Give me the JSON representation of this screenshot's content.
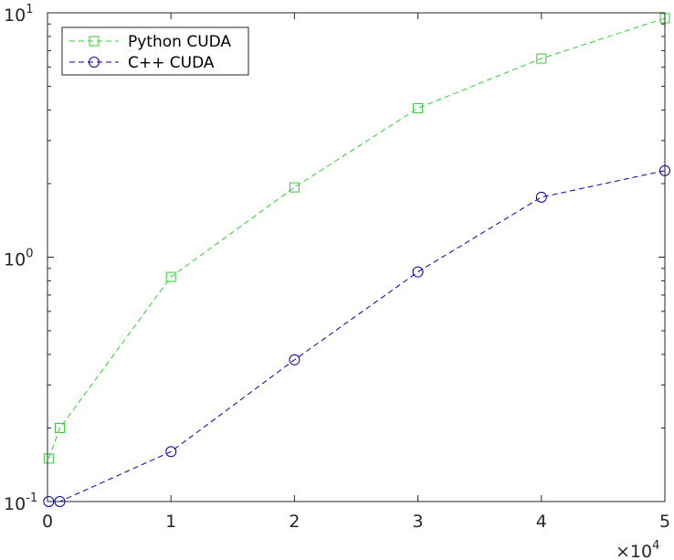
{
  "chart_data": {
    "type": "line",
    "title": "",
    "xlabel": "",
    "ylabel": "",
    "x_multiplier_label": "×10",
    "x_multiplier_exponent": "4",
    "xlim": [
      0,
      50000
    ],
    "ylim": [
      0.1,
      10
    ],
    "y_scale": "log",
    "grid": false,
    "legend_position": "top-left",
    "x_ticks": [
      0,
      10000,
      20000,
      30000,
      40000,
      50000
    ],
    "x_tick_labels": [
      "0",
      "1",
      "2",
      "3",
      "4",
      "5"
    ],
    "y_ticks": [
      0.1,
      1,
      10
    ],
    "y_tick_base": "10",
    "y_tick_exponents": [
      "-1",
      "0",
      "1"
    ],
    "series": [
      {
        "name": "Python CUDA",
        "color": "#33cc33",
        "marker": "square",
        "line_style": "dashed",
        "x": [
          100,
          1000,
          10000,
          20000,
          30000,
          40000,
          50000
        ],
        "y": [
          0.15,
          0.2,
          0.83,
          1.93,
          4.07,
          6.5,
          9.5
        ]
      },
      {
        "name": "C++ CUDA",
        "color": "#0000aa",
        "marker": "circle",
        "line_style": "dashed",
        "x": [
          100,
          1000,
          10000,
          20000,
          30000,
          40000,
          50000
        ],
        "y": [
          0.1,
          0.1,
          0.16,
          0.38,
          0.87,
          1.76,
          2.26
        ]
      }
    ]
  }
}
